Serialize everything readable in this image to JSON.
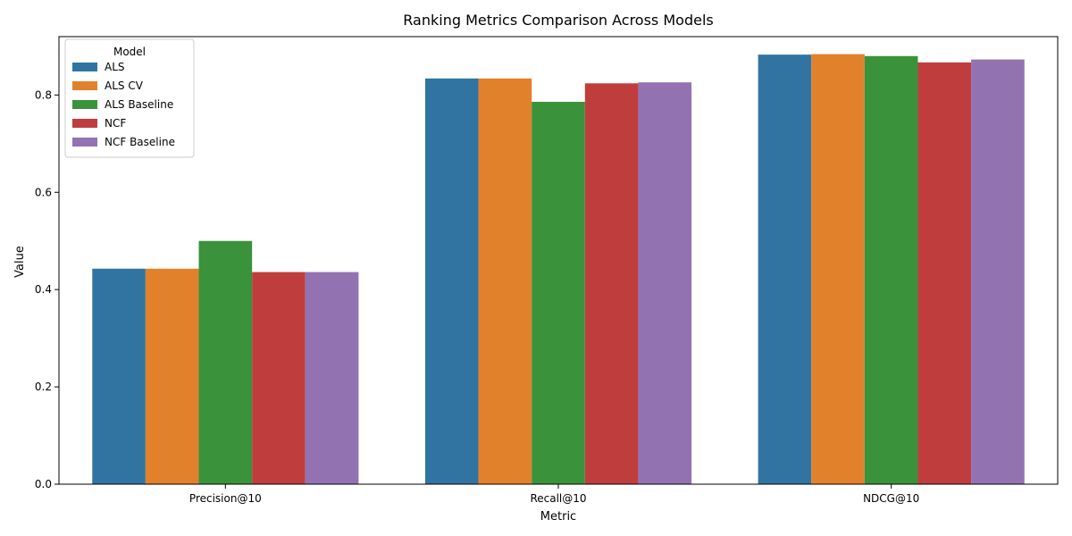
{
  "chart_data": {
    "type": "bar",
    "title": "Ranking Metrics Comparison Across Models",
    "xlabel": "Metric",
    "ylabel": "Value",
    "categories": [
      "Precision@10",
      "Recall@10",
      "NDCG@10"
    ],
    "ylim": [
      0,
      0.92
    ],
    "yticks": [
      "0.0",
      "0.2",
      "0.4",
      "0.6",
      "0.8"
    ],
    "yticks_values": [
      0.0,
      0.2,
      0.4,
      0.6,
      0.8
    ],
    "legend_title": "Model",
    "legend_position": "top-left",
    "grid": false,
    "series": [
      {
        "name": "ALS",
        "color": "#3274a1",
        "values": [
          0.443,
          0.834,
          0.883
        ]
      },
      {
        "name": "ALS CV",
        "color": "#e1812c",
        "values": [
          0.443,
          0.834,
          0.884
        ]
      },
      {
        "name": "ALS Baseline",
        "color": "#3a923a",
        "values": [
          0.5,
          0.786,
          0.88
        ]
      },
      {
        "name": "NCF",
        "color": "#c03d3e",
        "values": [
          0.436,
          0.824,
          0.867
        ]
      },
      {
        "name": "NCF Baseline",
        "color": "#9372b2",
        "values": [
          0.436,
          0.826,
          0.873
        ]
      }
    ]
  }
}
